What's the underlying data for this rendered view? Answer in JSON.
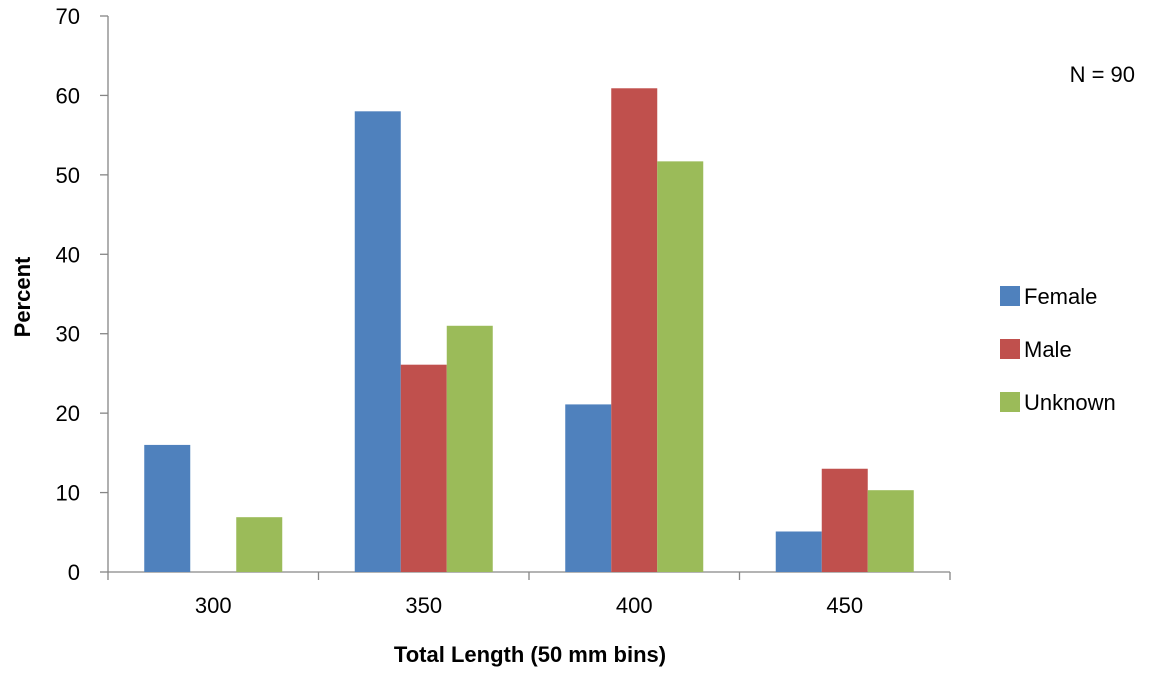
{
  "chart_data": {
    "type": "bar",
    "title": "",
    "xlabel": "Total Length (50 mm bins)",
    "ylabel": "Percent",
    "categories": [
      "300",
      "350",
      "400",
      "450"
    ],
    "series": [
      {
        "name": "Female",
        "color": "#4F81BD",
        "values": [
          16,
          58,
          21.1,
          5.1
        ]
      },
      {
        "name": "Male",
        "color": "#C0504D",
        "values": [
          0,
          26.1,
          60.9,
          13
        ]
      },
      {
        "name": "Unknown",
        "color": "#9BBB59",
        "values": [
          6.9,
          31,
          51.7,
          10.3
        ]
      }
    ],
    "ylim": [
      0,
      70
    ],
    "yticks": [
      0,
      10,
      20,
      30,
      40,
      50,
      60,
      70
    ],
    "grid": false,
    "legend": "right",
    "annotation": "N = 90"
  }
}
